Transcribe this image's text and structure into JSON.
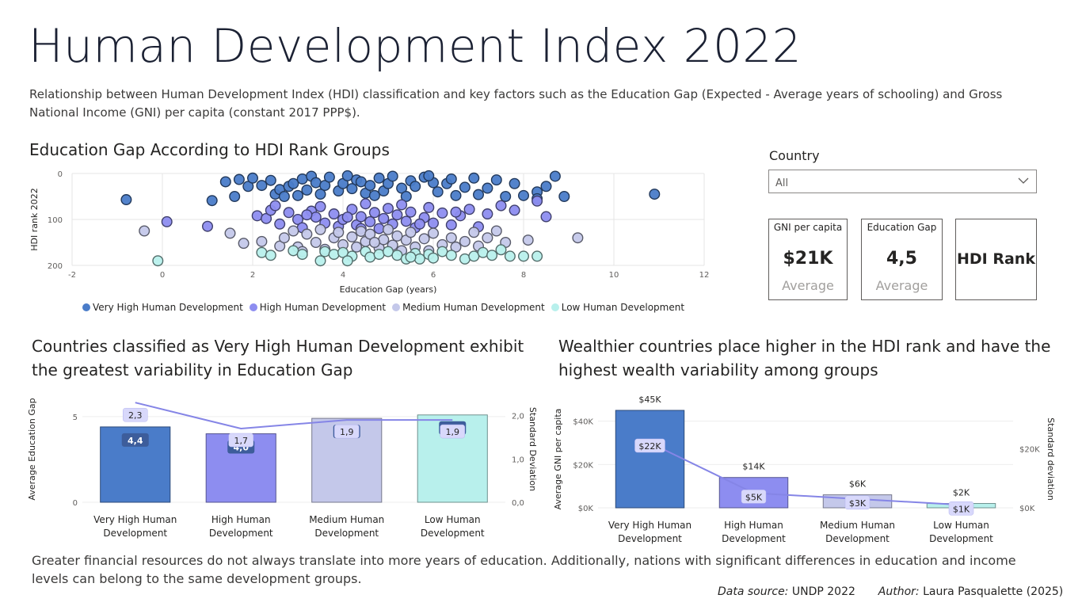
{
  "header": {
    "title": "Human Development Index 2022",
    "subtitle": "Relationship between Human Development Index (HDI) classification and key factors such as the Education Gap (Expected - Average years of schooling) and Gross National Income (GNI) per capita (constant 2017 PPP$)."
  },
  "colors": {
    "very_high": "#4a7cc9",
    "high": "#8d8df0",
    "medium": "#c4c8ea",
    "low": "#b8f0ec",
    "line": "#8585e6",
    "label_dark": "#3d5d9b"
  },
  "legend": [
    {
      "label": "Very High Human Development",
      "color": "#4a7cc9"
    },
    {
      "label": "High Human Development",
      "color": "#8d8df0"
    },
    {
      "label": "Medium Human Development",
      "color": "#c4c8ea"
    },
    {
      "label": "Low Human Development",
      "color": "#b8f0ec"
    }
  ],
  "slicer": {
    "label": "Country",
    "value": "All",
    "icon": "chevron-down-icon"
  },
  "cards": {
    "gni": {
      "label": "GNI per capita",
      "value": "$21K",
      "sub": "Average"
    },
    "edu": {
      "label": "Education Gap",
      "value": "4,5",
      "sub": "Average"
    },
    "rank": {
      "label": "HDI Rank"
    }
  },
  "footer": {
    "text": "Greater financial resources do not always translate into more years of education. Additionally, nations with significant differences in education and income levels can belong to the same development groups.",
    "source_label": "Data source:",
    "source_value": "UNDP 2022",
    "author_label": "Author:",
    "author_value": "Laura Pasqualette (2025)"
  },
  "chart_data": [
    {
      "type": "scatter",
      "title": "Education Gap According to HDI Rank Groups",
      "xlabel": "Education Gap (years)",
      "ylabel": "HDI rank 2022",
      "xlim": [
        -2,
        12
      ],
      "ylim": [
        0,
        200
      ],
      "y_reversed": true,
      "xticks": [
        "-2",
        "0",
        "2",
        "4",
        "6",
        "8",
        "10",
        "12"
      ],
      "yticks": [
        "0",
        "100",
        "200"
      ],
      "grid": true,
      "legend_position": "bottom",
      "series": [
        {
          "name": "Very High Human Development",
          "points": [
            [
              -0.8,
              57
            ],
            [
              1.1,
              59
            ],
            [
              1.4,
              18
            ],
            [
              1.6,
              50
            ],
            [
              1.7,
              13
            ],
            [
              1.9,
              28
            ],
            [
              2.0,
              10
            ],
            [
              2.2,
              26
            ],
            [
              2.4,
              15
            ],
            [
              2.5,
              45
            ],
            [
              2.6,
              35
            ],
            [
              2.7,
              50
            ],
            [
              2.8,
              28
            ],
            [
              2.9,
              22
            ],
            [
              3.0,
              48
            ],
            [
              3.1,
              12
            ],
            [
              3.2,
              36
            ],
            [
              3.3,
              6
            ],
            [
              3.4,
              20
            ],
            [
              3.5,
              45
            ],
            [
              3.6,
              26
            ],
            [
              3.7,
              8
            ],
            [
              3.9,
              38
            ],
            [
              4.0,
              22
            ],
            [
              4.1,
              5
            ],
            [
              4.2,
              33
            ],
            [
              4.3,
              14
            ],
            [
              4.4,
              18
            ],
            [
              4.5,
              43
            ],
            [
              4.6,
              26
            ],
            [
              4.8,
              10
            ],
            [
              4.9,
              38
            ],
            [
              5.0,
              22
            ],
            [
              5.1,
              6
            ],
            [
              5.3,
              32
            ],
            [
              5.4,
              50
            ],
            [
              5.5,
              16
            ],
            [
              5.6,
              28
            ],
            [
              5.8,
              8
            ],
            [
              6.0,
              20
            ],
            [
              6.1,
              40
            ],
            [
              6.3,
              22
            ],
            [
              6.4,
              12
            ],
            [
              6.5,
              48
            ],
            [
              6.7,
              30
            ],
            [
              6.9,
              10
            ],
            [
              7.0,
              46
            ],
            [
              7.2,
              32
            ],
            [
              7.4,
              14
            ],
            [
              7.6,
              50
            ],
            [
              7.8,
              22
            ],
            [
              8.0,
              48
            ],
            [
              8.3,
              40
            ],
            [
              8.5,
              28
            ],
            [
              8.7,
              6
            ],
            [
              8.9,
              50
            ],
            [
              10.9,
              45
            ],
            [
              8.3,
              55
            ],
            [
              5.9,
              5
            ],
            [
              4.7,
              48
            ]
          ]
        },
        {
          "name": "High Human Development",
          "points": [
            [
              0.1,
              105
            ],
            [
              1.0,
              115
            ],
            [
              2.1,
              92
            ],
            [
              2.3,
              98
            ],
            [
              2.4,
              80
            ],
            [
              2.5,
              70
            ],
            [
              2.6,
              110
            ],
            [
              2.8,
              85
            ],
            [
              3.0,
              100
            ],
            [
              3.1,
              118
            ],
            [
              3.3,
              82
            ],
            [
              3.4,
              95
            ],
            [
              3.5,
              72
            ],
            [
              3.6,
              108
            ],
            [
              3.8,
              88
            ],
            [
              3.9,
              115
            ],
            [
              4.0,
              100
            ],
            [
              4.2,
              78
            ],
            [
              4.3,
              112
            ],
            [
              4.4,
              94
            ],
            [
              4.5,
              66
            ],
            [
              4.6,
              105
            ],
            [
              4.7,
              85
            ],
            [
              4.8,
              120
            ],
            [
              4.9,
              98
            ],
            [
              5.0,
              76
            ],
            [
              5.1,
              110
            ],
            [
              5.2,
              90
            ],
            [
              5.3,
              68
            ],
            [
              5.4,
              104
            ],
            [
              5.5,
              84
            ],
            [
              5.6,
              118
            ],
            [
              5.8,
              96
            ],
            [
              5.9,
              74
            ],
            [
              6.0,
              108
            ],
            [
              6.2,
              86
            ],
            [
              6.4,
              112
            ],
            [
              6.6,
              92
            ],
            [
              6.8,
              78
            ],
            [
              7.0,
              116
            ],
            [
              7.2,
              88
            ],
            [
              7.5,
              70
            ],
            [
              7.8,
              80
            ],
            [
              8.5,
              94
            ],
            [
              8.3,
              60
            ],
            [
              3.2,
              90
            ],
            [
              4.1,
              95
            ],
            [
              5.7,
              110
            ],
            [
              6.5,
              84
            ],
            [
              4.4,
              120
            ]
          ]
        },
        {
          "name": "Medium Human Development",
          "points": [
            [
              -0.4,
              125
            ],
            [
              1.5,
              130
            ],
            [
              1.8,
              152
            ],
            [
              2.2,
              148
            ],
            [
              2.6,
              158
            ],
            [
              2.7,
              140
            ],
            [
              2.9,
              125
            ],
            [
              3.0,
              160
            ],
            [
              3.2,
              132
            ],
            [
              3.4,
              150
            ],
            [
              3.5,
              122
            ],
            [
              3.6,
              165
            ],
            [
              3.8,
              140
            ],
            [
              3.9,
              128
            ],
            [
              4.0,
              155
            ],
            [
              4.2,
              138
            ],
            [
              4.3,
              160
            ],
            [
              4.4,
              126
            ],
            [
              4.5,
              148
            ],
            [
              4.6,
              132
            ],
            [
              4.8,
              162
            ],
            [
              4.9,
              144
            ],
            [
              5.0,
              122
            ],
            [
              5.1,
              156
            ],
            [
              5.2,
              136
            ],
            [
              5.3,
              168
            ],
            [
              5.4,
              145
            ],
            [
              5.5,
              128
            ],
            [
              5.6,
              160
            ],
            [
              5.8,
              142
            ],
            [
              6.0,
              130
            ],
            [
              6.2,
              155
            ],
            [
              6.4,
              140
            ],
            [
              6.5,
              160
            ],
            [
              6.7,
              148
            ],
            [
              6.9,
              128
            ],
            [
              7.0,
              158
            ],
            [
              7.2,
              140
            ],
            [
              7.4,
              125
            ],
            [
              7.6,
              150
            ],
            [
              8.1,
              145
            ],
            [
              9.2,
              140
            ],
            [
              3.1,
              170
            ],
            [
              4.7,
              150
            ],
            [
              5.9,
              168
            ]
          ]
        },
        {
          "name": "Low Human Development",
          "points": [
            [
              -0.1,
              190
            ],
            [
              2.2,
              172
            ],
            [
              2.4,
              178
            ],
            [
              2.9,
              168
            ],
            [
              3.1,
              176
            ],
            [
              3.5,
              190
            ],
            [
              3.6,
              170
            ],
            [
              3.8,
              176
            ],
            [
              4.0,
              172
            ],
            [
              4.2,
              180
            ],
            [
              4.5,
              170
            ],
            [
              4.6,
              182
            ],
            [
              4.8,
              176
            ],
            [
              5.0,
              170
            ],
            [
              5.2,
              178
            ],
            [
              5.4,
              186
            ],
            [
              5.6,
              174
            ],
            [
              5.7,
              186
            ],
            [
              5.9,
              176
            ],
            [
              6.0,
              184
            ],
            [
              6.2,
              170
            ],
            [
              6.4,
              178
            ],
            [
              6.7,
              186
            ],
            [
              6.9,
              180
            ],
            [
              7.1,
              172
            ],
            [
              7.3,
              178
            ],
            [
              7.5,
              166
            ],
            [
              7.7,
              180
            ],
            [
              8.0,
              180
            ],
            [
              8.3,
              180
            ],
            [
              5.5,
              182
            ],
            [
              4.1,
              190
            ]
          ]
        }
      ]
    },
    {
      "type": "bar",
      "title": "Countries classified as Very High Human Development exhibit the greatest variability in Education Gap",
      "categories": [
        "Very High Human Development",
        "High Human Development",
        "Medium Human Development",
        "Low Human Development"
      ],
      "ylabel": "Average Education Gap",
      "y2label": "Standard Deviation",
      "ylim": [
        0,
        6.2
      ],
      "y2lim": [
        0,
        2.45
      ],
      "yticks": [
        "0",
        "5"
      ],
      "y2ticks": [
        "0,0",
        "1,0",
        "2,0"
      ],
      "series": [
        {
          "name": "Average Education Gap",
          "values": [
            4.4,
            4.0,
            4.9,
            5.1
          ],
          "labels": [
            "4,4",
            "4,0",
            "4,9",
            "5,1"
          ]
        },
        {
          "name": "Standard Deviation",
          "type": "line",
          "values": [
            2.3,
            1.7,
            1.9,
            1.9
          ],
          "labels": [
            "2,3",
            "1,7",
            "1,9",
            "1,9"
          ]
        }
      ]
    },
    {
      "type": "bar",
      "title": "Wealthier countries place higher in the HDI rank and have the highest wealth variability among groups",
      "categories": [
        "Very High Human Development",
        "High Human Development",
        "Medium Human Development",
        "Low Human Development"
      ],
      "ylabel": "Average GNI per capita",
      "y2label": "Standard deviation",
      "ylim": [
        0,
        45000
      ],
      "y2lim": [
        0,
        33000
      ],
      "yticks": [
        "$0K",
        "$20K",
        "$40K"
      ],
      "y2ticks": [
        "$0K",
        "$20K"
      ],
      "series": [
        {
          "name": "Average GNI per capita",
          "values": [
            45000,
            14000,
            6000,
            2000
          ],
          "labels": [
            "$45K",
            "$14K",
            "$6K",
            "$2K"
          ]
        },
        {
          "name": "Standard deviation",
          "type": "line",
          "values": [
            22000,
            5000,
            3000,
            1000
          ],
          "labels": [
            "$22K",
            "$5K",
            "$3K",
            "$1K"
          ]
        }
      ]
    }
  ]
}
